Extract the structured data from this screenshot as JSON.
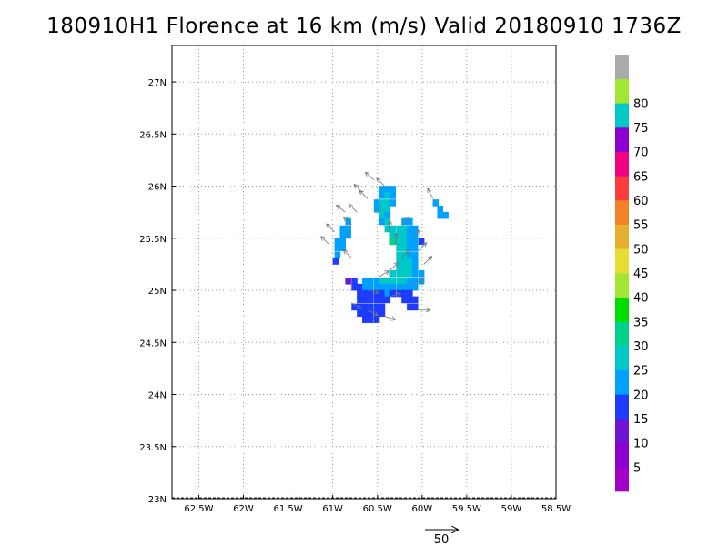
{
  "title": "180910H1 Florence at 16 km (m/s) Valid 20180910 1736Z",
  "map": {
    "lon_range": [
      -62.8,
      -58.5
    ],
    "lat_range": [
      23.0,
      27.35
    ],
    "lon_ticks": [
      {
        "value": -62.5,
        "label": "62.5W"
      },
      {
        "value": -62.0,
        "label": "62W"
      },
      {
        "value": -61.5,
        "label": "61.5W"
      },
      {
        "value": -61.0,
        "label": "61W"
      },
      {
        "value": -60.5,
        "label": "60.5W"
      },
      {
        "value": -60.0,
        "label": "60W"
      },
      {
        "value": -59.5,
        "label": "59.5W"
      },
      {
        "value": -59.0,
        "label": "59W"
      },
      {
        "value": -58.5,
        "label": "58.5W"
      }
    ],
    "lat_ticks": [
      {
        "value": 23.0,
        "label": "23N"
      },
      {
        "value": 23.5,
        "label": "23.5N"
      },
      {
        "value": 24.0,
        "label": "24N"
      },
      {
        "value": 24.5,
        "label": "24.5N"
      },
      {
        "value": 25.0,
        "label": "25N"
      },
      {
        "value": 25.5,
        "label": "25.5N"
      },
      {
        "value": 26.0,
        "label": "26N"
      },
      {
        "value": 26.5,
        "label": "26.5N"
      },
      {
        "value": 27.0,
        "label": "27N"
      }
    ],
    "grid": "dotted",
    "colorbar": {
      "levels": [
        {
          "label": "",
          "color": "#a000c8"
        },
        {
          "label": "5",
          "color": "#8c00d2"
        },
        {
          "label": "10",
          "color": "#6e14d2"
        },
        {
          "label": "15",
          "color": "#1e3cff"
        },
        {
          "label": "20",
          "color": "#00a0ff"
        },
        {
          "label": "25",
          "color": "#00c8c8"
        },
        {
          "label": "30",
          "color": "#00d28c"
        },
        {
          "label": "35",
          "color": "#00dc00"
        },
        {
          "label": "40",
          "color": "#a0e632"
        },
        {
          "label": "45",
          "color": "#e6dc32"
        },
        {
          "label": "50",
          "color": "#e6af2d"
        },
        {
          "label": "55",
          "color": "#f08228"
        },
        {
          "label": "60",
          "color": "#fa3c3c"
        },
        {
          "label": "65",
          "color": "#f00082"
        },
        {
          "label": "70",
          "color": "#8c00d2"
        },
        {
          "label": "75",
          "color": "#00c8c8"
        },
        {
          "label": "80",
          "color": "#a0e632"
        },
        {
          "label": "",
          "color": "#aaaaaa"
        }
      ]
    },
    "reference_vector_label": "50",
    "cell_deg": 0.0625,
    "cells": [
      [
        25.94,
        -60.48,
        "#00a0ff"
      ],
      [
        25.94,
        -60.42,
        "#00a0ff"
      ],
      [
        25.94,
        -60.36,
        "#00a0ff"
      ],
      [
        25.88,
        -60.48,
        "#00a0ff"
      ],
      [
        25.88,
        -60.42,
        "#00c8c8"
      ],
      [
        25.88,
        -60.36,
        "#00a0ff"
      ],
      [
        25.81,
        -60.54,
        "#00a0ff"
      ],
      [
        25.81,
        -60.48,
        "#00c8c8"
      ],
      [
        25.81,
        -60.42,
        "#00c8c8"
      ],
      [
        25.81,
        -60.36,
        "#00a0ff"
      ],
      [
        25.75,
        -60.54,
        "#00a0ff"
      ],
      [
        25.75,
        -60.48,
        "#00c8c8"
      ],
      [
        25.75,
        -60.42,
        "#00c8c8"
      ],
      [
        25.69,
        -60.48,
        "#00c8c8"
      ],
      [
        25.69,
        -60.42,
        "#00a0ff"
      ],
      [
        25.63,
        -60.48,
        "#00a0ff"
      ],
      [
        25.63,
        -60.42,
        "#00c8c8"
      ],
      [
        25.63,
        -60.23,
        "#00a0ff"
      ],
      [
        25.63,
        -60.17,
        "#00a0ff"
      ],
      [
        25.56,
        -60.42,
        "#00c8c8"
      ],
      [
        25.56,
        -60.36,
        "#00c8c8"
      ],
      [
        25.56,
        -60.29,
        "#00c8c8"
      ],
      [
        25.56,
        -60.23,
        "#00c8c8"
      ],
      [
        25.56,
        -60.17,
        "#00a0ff"
      ],
      [
        25.56,
        -60.11,
        "#00a0ff"
      ],
      [
        25.5,
        -60.36,
        "#00c8c8"
      ],
      [
        25.5,
        -60.29,
        "#00c8c8"
      ],
      [
        25.5,
        -60.23,
        "#00c8c8"
      ],
      [
        25.5,
        -60.17,
        "#00a0ff"
      ],
      [
        25.5,
        -60.11,
        "#00a0ff"
      ],
      [
        25.44,
        -60.36,
        "#00d28c"
      ],
      [
        25.44,
        -60.29,
        "#00c8c8"
      ],
      [
        25.44,
        -60.23,
        "#00c8c8"
      ],
      [
        25.44,
        -60.17,
        "#00a0ff"
      ],
      [
        25.44,
        -60.11,
        "#00a0ff"
      ],
      [
        25.44,
        -60.04,
        "#1e3cff"
      ],
      [
        25.38,
        -60.29,
        "#00c8c8"
      ],
      [
        25.38,
        -60.23,
        "#00c8c8"
      ],
      [
        25.38,
        -60.17,
        "#00a0ff"
      ],
      [
        25.38,
        -60.11,
        "#00a0ff"
      ],
      [
        25.31,
        -60.29,
        "#00c8c8"
      ],
      [
        25.31,
        -60.23,
        "#00c8c8"
      ],
      [
        25.31,
        -60.17,
        "#00a0ff"
      ],
      [
        25.31,
        -60.11,
        "#00a0ff"
      ],
      [
        25.25,
        -60.29,
        "#00c8c8"
      ],
      [
        25.25,
        -60.23,
        "#00c8c8"
      ],
      [
        25.25,
        -60.17,
        "#00c8c8"
      ],
      [
        25.25,
        -60.11,
        "#00a0ff"
      ],
      [
        25.19,
        -60.29,
        "#00c8c8"
      ],
      [
        25.19,
        -60.23,
        "#00c8c8"
      ],
      [
        25.19,
        -60.17,
        "#00c8c8"
      ],
      [
        25.19,
        -60.11,
        "#00a0ff"
      ],
      [
        25.13,
        -60.36,
        "#00c8c8"
      ],
      [
        25.13,
        -60.29,
        "#00c8c8"
      ],
      [
        25.13,
        -60.23,
        "#00c8c8"
      ],
      [
        25.13,
        -60.17,
        "#00c8c8"
      ],
      [
        25.13,
        -60.11,
        "#00a0ff"
      ],
      [
        25.13,
        -60.04,
        "#00a0ff"
      ],
      [
        25.06,
        -60.67,
        "#00a0ff"
      ],
      [
        25.06,
        -60.61,
        "#00a0ff"
      ],
      [
        25.06,
        -60.54,
        "#00a0ff"
      ],
      [
        25.06,
        -60.48,
        "#00c8c8"
      ],
      [
        25.06,
        -60.42,
        "#00c8c8"
      ],
      [
        25.06,
        -60.36,
        "#00c8c8"
      ],
      [
        25.06,
        -60.29,
        "#00c8c8"
      ],
      [
        25.06,
        -60.23,
        "#00c8c8"
      ],
      [
        25.06,
        -60.17,
        "#00a0ff"
      ],
      [
        25.06,
        -60.11,
        "#00a0ff"
      ],
      [
        25.06,
        -60.04,
        "#00a0ff"
      ],
      [
        25.06,
        -60.86,
        "#6e14d2"
      ],
      [
        25.06,
        -60.79,
        "#1e3cff"
      ],
      [
        25.0,
        -60.79,
        "#1e3cff"
      ],
      [
        25.0,
        -60.73,
        "#1e3cff"
      ],
      [
        25.0,
        -60.67,
        "#00a0ff"
      ],
      [
        25.0,
        -60.61,
        "#00a0ff"
      ],
      [
        25.0,
        -60.54,
        "#00a0ff"
      ],
      [
        25.0,
        -60.48,
        "#00a0ff"
      ],
      [
        25.0,
        -60.42,
        "#00a0ff"
      ],
      [
        25.0,
        -60.36,
        "#00a0ff"
      ],
      [
        25.0,
        -60.29,
        "#00a0ff"
      ],
      [
        25.0,
        -60.23,
        "#00a0ff"
      ],
      [
        25.0,
        -60.17,
        "#00a0ff"
      ],
      [
        25.0,
        -60.11,
        "#00a0ff"
      ],
      [
        24.94,
        -60.73,
        "#1e3cff"
      ],
      [
        24.94,
        -60.67,
        "#1e3cff"
      ],
      [
        24.94,
        -60.61,
        "#1e3cff"
      ],
      [
        24.94,
        -60.54,
        "#1e3cff"
      ],
      [
        24.94,
        -60.48,
        "#1e3cff"
      ],
      [
        24.94,
        -60.42,
        "#00a0ff"
      ],
      [
        24.94,
        -60.36,
        "#1e3cff"
      ],
      [
        24.94,
        -60.29,
        "#1e3cff"
      ],
      [
        24.94,
        -60.23,
        "#1e3cff"
      ],
      [
        24.94,
        -60.17,
        "#1e3cff"
      ],
      [
        24.88,
        -60.73,
        "#1e3cff"
      ],
      [
        24.88,
        -60.67,
        "#1e3cff"
      ],
      [
        24.88,
        -60.61,
        "#1e3cff"
      ],
      [
        24.88,
        -60.54,
        "#1e3cff"
      ],
      [
        24.88,
        -60.48,
        "#1e3cff"
      ],
      [
        24.88,
        -60.42,
        "#1e3cff"
      ],
      [
        24.88,
        -60.23,
        "#1e3cff"
      ],
      [
        24.88,
        -60.17,
        "#1e3cff"
      ],
      [
        24.88,
        -60.11,
        "#1e3cff"
      ],
      [
        24.81,
        -60.79,
        "#1e3cff"
      ],
      [
        24.81,
        -60.73,
        "#1e3cff"
      ],
      [
        24.81,
        -60.67,
        "#1e3cff"
      ],
      [
        24.81,
        -60.61,
        "#1e3cff"
      ],
      [
        24.81,
        -60.54,
        "#1e3cff"
      ],
      [
        24.81,
        -60.48,
        "#1e3cff"
      ],
      [
        24.81,
        -60.17,
        "#1e3cff"
      ],
      [
        24.81,
        -60.11,
        "#1e3cff"
      ],
      [
        24.75,
        -60.73,
        "#1e3cff"
      ],
      [
        24.75,
        -60.67,
        "#1e3cff"
      ],
      [
        24.75,
        -60.61,
        "#1e3cff"
      ],
      [
        24.75,
        -60.54,
        "#1e3cff"
      ],
      [
        24.75,
        -60.48,
        "#1e3cff"
      ],
      [
        24.69,
        -60.67,
        "#1e3cff"
      ],
      [
        24.69,
        -60.61,
        "#1e3cff"
      ],
      [
        24.69,
        -60.54,
        "#1e3cff"
      ],
      [
        25.63,
        -60.86,
        "#00a0ff"
      ],
      [
        25.56,
        -60.86,
        "#00a0ff"
      ],
      [
        25.56,
        -60.92,
        "#00a0ff"
      ],
      [
        25.5,
        -60.86,
        "#00a0ff"
      ],
      [
        25.5,
        -60.92,
        "#00a0ff"
      ],
      [
        25.44,
        -60.92,
        "#00a0ff"
      ],
      [
        25.44,
        -60.98,
        "#00a0ff"
      ],
      [
        25.38,
        -60.98,
        "#00a0ff"
      ],
      [
        25.38,
        -60.92,
        "#00a0ff"
      ],
      [
        25.31,
        -60.98,
        "#00a0ff"
      ],
      [
        25.25,
        -61.0,
        "#1e3cff"
      ],
      [
        25.81,
        -59.88,
        "#00a0ff"
      ],
      [
        25.75,
        -59.83,
        "#00a0ff"
      ],
      [
        25.69,
        -59.83,
        "#00a0ff"
      ],
      [
        25.69,
        -59.77,
        "#00a0ff"
      ]
    ],
    "vectors": [
      [
        26.0,
        -60.42,
        -1,
        1
      ],
      [
        25.94,
        -60.67,
        -1,
        1
      ],
      [
        25.88,
        -60.61,
        -1,
        1
      ],
      [
        25.75,
        -60.73,
        -1,
        1
      ],
      [
        25.69,
        -60.48,
        0,
        1
      ],
      [
        25.63,
        -60.79,
        -1,
        1
      ],
      [
        25.56,
        -60.98,
        -1,
        1
      ],
      [
        25.44,
        -61.04,
        -1,
        1
      ],
      [
        25.56,
        -60.36,
        0,
        1
      ],
      [
        25.44,
        -60.29,
        0,
        1
      ],
      [
        25.31,
        -60.23,
        1,
        1
      ],
      [
        25.19,
        -60.36,
        1,
        1
      ],
      [
        25.63,
        -60.23,
        1,
        1
      ],
      [
        25.5,
        -60.11,
        1,
        1
      ],
      [
        25.38,
        -60.04,
        1,
        1
      ],
      [
        25.25,
        -59.98,
        1,
        1
      ],
      [
        25.13,
        -60.48,
        1,
        0.6
      ],
      [
        25.06,
        -60.11,
        1,
        0.4
      ],
      [
        25.0,
        -60.61,
        1,
        -0.2
      ],
      [
        24.94,
        -60.36,
        1,
        0.3
      ],
      [
        24.88,
        -60.79,
        1,
        -0.6
      ],
      [
        24.81,
        -60.61,
        1,
        -0.5
      ],
      [
        24.75,
        -60.42,
        1,
        -0.3
      ],
      [
        24.81,
        -60.04,
        1,
        0
      ],
      [
        25.88,
        -59.88,
        -0.5,
        1
      ],
      [
        25.75,
        -60.86,
        -1,
        0.8
      ],
      [
        26.06,
        -60.54,
        -1,
        0.9
      ],
      [
        25.31,
        -60.79,
        -1,
        1
      ]
    ]
  }
}
